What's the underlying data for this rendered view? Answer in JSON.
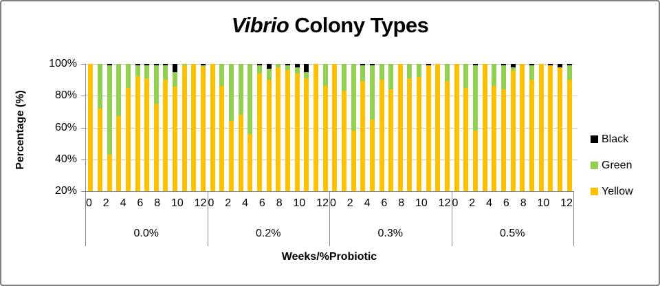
{
  "chart_data": {
    "type": "bar",
    "stacked": true,
    "title": "Vibrio Colony Types",
    "title_parts": {
      "italic": "Vibrio",
      "regular": " Colony Types"
    },
    "xlabel": "Weeks/%Probiotic",
    "ylabel": "Percentage (%)",
    "ylim": [
      20,
      100
    ],
    "y_ticks": [
      "100%",
      "80%",
      "60%",
      "40%",
      "20%"
    ],
    "week_ticks": [
      "0",
      "2",
      "4",
      "6",
      "8",
      "10",
      "12"
    ],
    "grid": true,
    "legend_position": "right",
    "series_order_bottom_to_top": [
      "Yellow",
      "Green",
      "Black"
    ],
    "colors": {
      "yellow": "#FFC000",
      "green": "#92D050",
      "black": "#000000"
    },
    "legend": [
      {
        "label": "Black",
        "color": "#000000"
      },
      {
        "label": "Green",
        "color": "#92D050"
      },
      {
        "label": "Yellow",
        "color": "#FFC000"
      }
    ],
    "groups": [
      {
        "label": "0.0%",
        "bars": [
          {
            "week": 0,
            "yellow": 100,
            "green": 0,
            "black": 0
          },
          {
            "week": 1,
            "yellow": 72,
            "green": 28,
            "black": 0
          },
          {
            "week": 2,
            "yellow": 43,
            "green": 56,
            "black": 1
          },
          {
            "week": 3,
            "yellow": 67,
            "green": 33,
            "black": 0
          },
          {
            "week": 4,
            "yellow": 85,
            "green": 15,
            "black": 0
          },
          {
            "week": 5,
            "yellow": 92,
            "green": 7,
            "black": 1
          },
          {
            "week": 6,
            "yellow": 91,
            "green": 8,
            "black": 1
          },
          {
            "week": 7,
            "yellow": 75,
            "green": 24,
            "black": 1
          },
          {
            "week": 8,
            "yellow": 90,
            "green": 9,
            "black": 1
          },
          {
            "week": 9,
            "yellow": 86,
            "green": 9,
            "black": 5
          },
          {
            "week": 10,
            "yellow": 99,
            "green": 1,
            "black": 0
          },
          {
            "week": 11,
            "yellow": 100,
            "green": 0,
            "black": 0
          },
          {
            "week": 12,
            "yellow": 98,
            "green": 1,
            "black": 1
          }
        ]
      },
      {
        "label": "0.2%",
        "bars": [
          {
            "week": 0,
            "yellow": 100,
            "green": 0,
            "black": 0
          },
          {
            "week": 1,
            "yellow": 86,
            "green": 14,
            "black": 0
          },
          {
            "week": 2,
            "yellow": 64,
            "green": 36,
            "black": 0
          },
          {
            "week": 3,
            "yellow": 68,
            "green": 32,
            "black": 0
          },
          {
            "week": 4,
            "yellow": 56,
            "green": 44,
            "black": 0
          },
          {
            "week": 5,
            "yellow": 94,
            "green": 5,
            "black": 1
          },
          {
            "week": 6,
            "yellow": 90,
            "green": 7,
            "black": 3
          },
          {
            "week": 7,
            "yellow": 98,
            "green": 2,
            "black": 0
          },
          {
            "week": 8,
            "yellow": 96,
            "green": 3,
            "black": 1
          },
          {
            "week": 9,
            "yellow": 94,
            "green": 4,
            "black": 2
          },
          {
            "week": 10,
            "yellow": 91,
            "green": 4,
            "black": 5
          },
          {
            "week": 11,
            "yellow": 100,
            "green": 0,
            "black": 0
          },
          {
            "week": 12,
            "yellow": 86,
            "green": 14,
            "black": 0
          }
        ]
      },
      {
        "label": "0.3%",
        "bars": [
          {
            "week": 0,
            "yellow": 100,
            "green": 0,
            "black": 0
          },
          {
            "week": 1,
            "yellow": 83,
            "green": 17,
            "black": 0
          },
          {
            "week": 2,
            "yellow": 58,
            "green": 42,
            "black": 0
          },
          {
            "week": 3,
            "yellow": 89,
            "green": 10,
            "black": 1
          },
          {
            "week": 4,
            "yellow": 65,
            "green": 34,
            "black": 1
          },
          {
            "week": 5,
            "yellow": 90,
            "green": 10,
            "black": 0
          },
          {
            "week": 6,
            "yellow": 84,
            "green": 16,
            "black": 0
          },
          {
            "week": 7,
            "yellow": 100,
            "green": 0,
            "black": 0
          },
          {
            "week": 8,
            "yellow": 91,
            "green": 9,
            "black": 0
          },
          {
            "week": 9,
            "yellow": 92,
            "green": 8,
            "black": 0
          },
          {
            "week": 10,
            "yellow": 99,
            "green": 0,
            "black": 1
          },
          {
            "week": 11,
            "yellow": 100,
            "green": 0,
            "black": 0
          },
          {
            "week": 12,
            "yellow": 89,
            "green": 11,
            "black": 0
          }
        ]
      },
      {
        "label": "0.5%",
        "bars": [
          {
            "week": 0,
            "yellow": 100,
            "green": 0,
            "black": 0
          },
          {
            "week": 1,
            "yellow": 85,
            "green": 15,
            "black": 0
          },
          {
            "week": 2,
            "yellow": 58,
            "green": 41,
            "black": 1
          },
          {
            "week": 3,
            "yellow": 100,
            "green": 0,
            "black": 0
          },
          {
            "week": 4,
            "yellow": 86,
            "green": 14,
            "black": 0
          },
          {
            "week": 5,
            "yellow": 84,
            "green": 15,
            "black": 1
          },
          {
            "week": 6,
            "yellow": 96,
            "green": 2,
            "black": 2
          },
          {
            "week": 7,
            "yellow": 100,
            "green": 0,
            "black": 0
          },
          {
            "week": 8,
            "yellow": 90,
            "green": 9,
            "black": 1
          },
          {
            "week": 9,
            "yellow": 100,
            "green": 0,
            "black": 0
          },
          {
            "week": 10,
            "yellow": 99,
            "green": 0,
            "black": 1
          },
          {
            "week": 11,
            "yellow": 98,
            "green": 0,
            "black": 2
          },
          {
            "week": 12,
            "yellow": 90,
            "green": 9,
            "black": 1
          }
        ]
      }
    ]
  }
}
